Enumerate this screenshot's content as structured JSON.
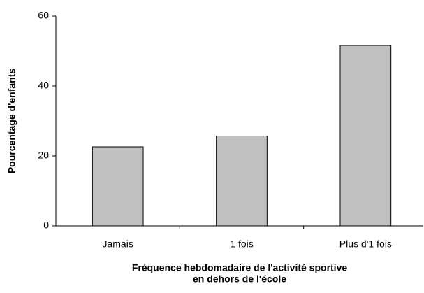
{
  "chart_data": {
    "type": "bar",
    "ylabel": "Pourcentage d'enfants",
    "xlabel": [
      "Fréquence hebdomadaire de l'activité sportive",
      "en dehors de l'école"
    ],
    "categories": [
      "Jamais",
      "1 fois",
      "Plus d'1 fois"
    ],
    "values": [
      22.6,
      25.7,
      51.6
    ],
    "color": "#c0c0c0",
    "ylim": [
      0,
      60
    ],
    "yticks": [
      0,
      20,
      40,
      60
    ]
  }
}
